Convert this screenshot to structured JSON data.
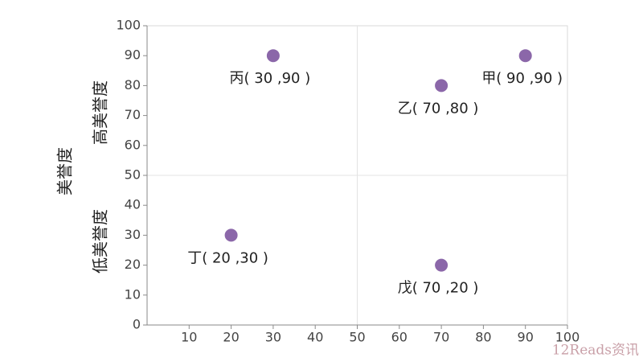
{
  "chart_data": {
    "type": "scatter",
    "y_label": "美誉度",
    "annotations": [
      "高美誉度",
      "低美誉度"
    ],
    "x": [
      90,
      70,
      30,
      20,
      70
    ],
    "values": [
      90,
      80,
      90,
      30,
      20
    ],
    "point_labels": [
      "甲( 90 ,90 )",
      "乙( 70 ,80 )",
      "丙( 30 ,90 )",
      "丁( 20 ,30 )",
      "戊( 70 ,20 )"
    ],
    "color": "#8b67a9",
    "xlim": [
      0,
      100
    ],
    "xticks": [
      10,
      20,
      30,
      40,
      50,
      60,
      70,
      80,
      90,
      100
    ],
    "ylim": [
      0,
      100
    ],
    "yticks": [
      0,
      10,
      20,
      30,
      40,
      50,
      60,
      70,
      80,
      90,
      100
    ],
    "divider_x": 50,
    "divider_y": 50,
    "watermark": "12Reads资讯"
  }
}
